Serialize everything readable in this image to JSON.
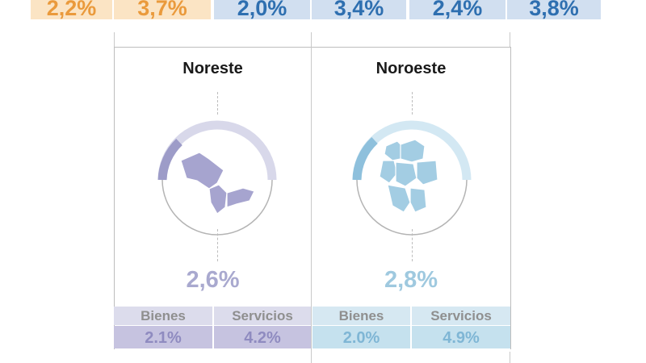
{
  "top_row": [
    "2,2%",
    "3,7%",
    "2,0%",
    "3,4%",
    "2,4%",
    "3,8%"
  ],
  "panels": {
    "left": {
      "title": "Noreste",
      "total": "2,6%",
      "bienes_label": "Bienes",
      "servicios_label": "Servicios",
      "bienes_value": "2.1%",
      "servicios_value": "4.2%",
      "gauge_level_pct": 2.6,
      "color": "#a9a9cf"
    },
    "right": {
      "title": "Noroeste",
      "total": "2,8%",
      "bienes_label": "Bienes",
      "servicios_label": "Servicios",
      "bienes_value": "2.0%",
      "servicios_value": "4.9%",
      "gauge_level_pct": 2.8,
      "color": "#9fc9df"
    }
  },
  "colors": {
    "orange": "#ea9a3c",
    "blue": "#2e6fb0",
    "lavender": "#a9a9cf",
    "lightblue": "#9fc9df"
  }
}
